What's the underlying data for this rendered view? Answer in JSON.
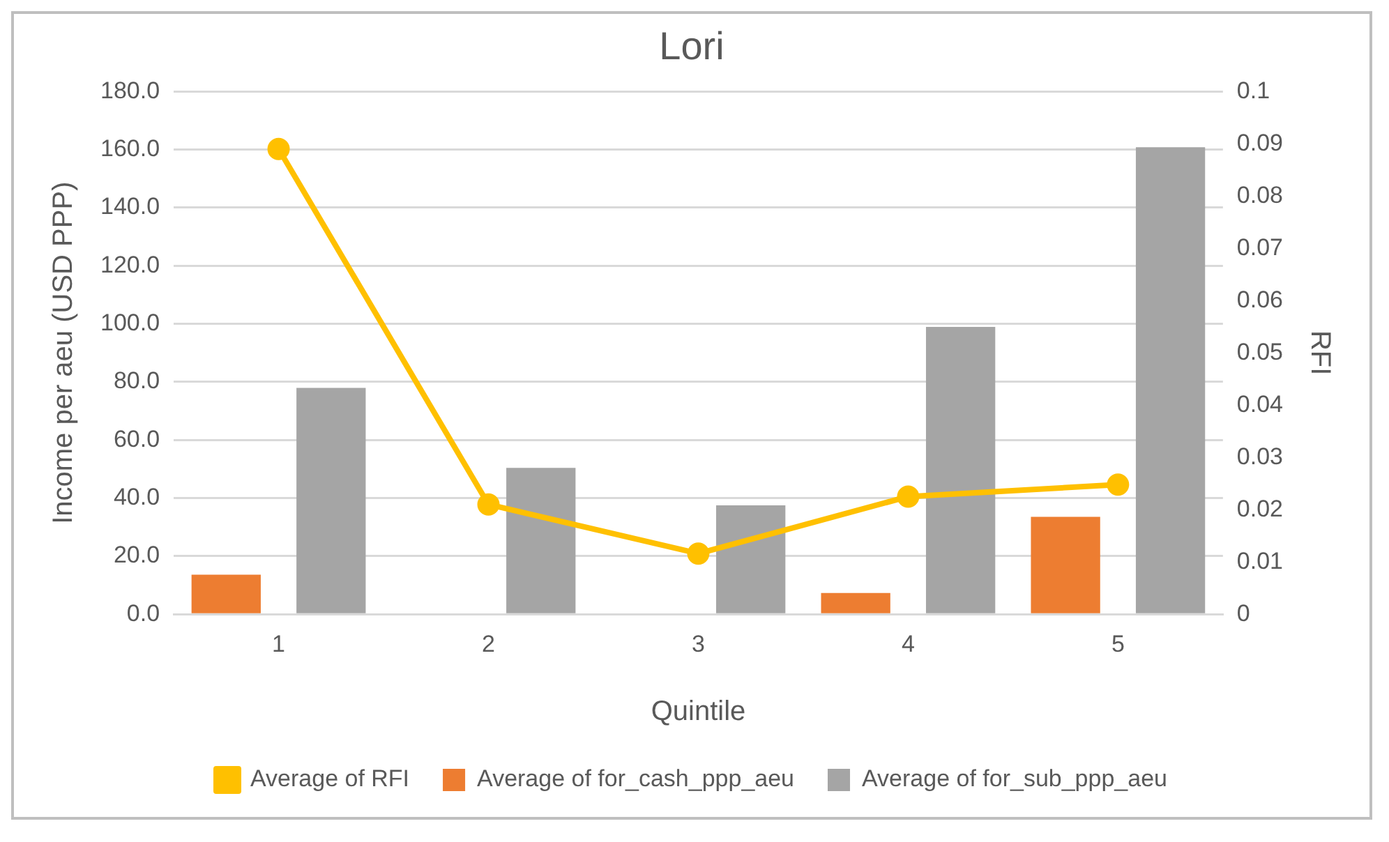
{
  "chart_data": {
    "type": "bar",
    "title": "Lori",
    "xlabel": "Quintile",
    "ylabel": "Income per aeu (USD PPP)",
    "y2label": "RFI",
    "categories": [
      "1",
      "2",
      "3",
      "4",
      "5"
    ],
    "series": [
      {
        "name": "Average of for_cash_ppp_aeu",
        "color": "#ed7d31",
        "values": [
          13.6,
          0,
          0,
          7.3,
          33.5
        ]
      },
      {
        "name": "Average of for_sub_ppp_aeu",
        "color": "#a5a5a5",
        "values": [
          77.9,
          50.4,
          37.5,
          98.9,
          160.8
        ]
      },
      {
        "name": "Average of RFI",
        "type": "line",
        "axis": "y2",
        "color": "#ffc000",
        "values": [
          0.089,
          0.021,
          0.0116,
          0.0225,
          0.0248
        ]
      }
    ],
    "ylim": [
      0,
      180
    ],
    "yticks": [
      {
        "value": 0,
        "label": "0.0"
      },
      {
        "value": 20,
        "label": "20.0"
      },
      {
        "value": 40,
        "label": "40.0"
      },
      {
        "value": 60,
        "label": "60.0"
      },
      {
        "value": 80,
        "label": "80.0"
      },
      {
        "value": 100,
        "label": "100.0"
      },
      {
        "value": 120,
        "label": "120.0"
      },
      {
        "value": 140,
        "label": "140.0"
      },
      {
        "value": 160,
        "label": "160.0"
      },
      {
        "value": 180,
        "label": "180.0"
      }
    ],
    "y2lim": [
      0,
      0.1
    ],
    "y2ticks": [
      0,
      0.01,
      0.02,
      0.03,
      0.04,
      0.05,
      0.06,
      0.07,
      0.08,
      0.09,
      0.1
    ],
    "grid": "y",
    "legend": "bottom",
    "marker": "circle",
    "line_style": "solid"
  }
}
